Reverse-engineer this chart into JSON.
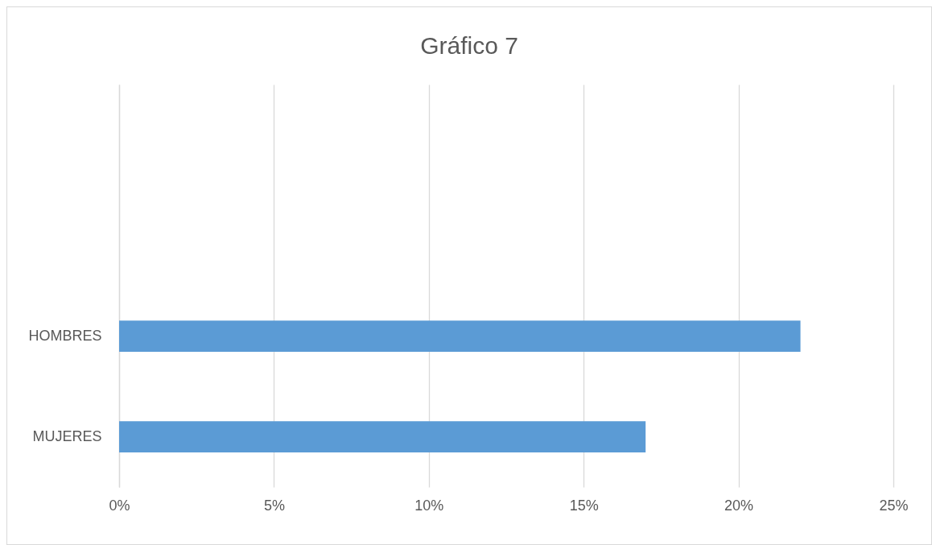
{
  "chart_data": {
    "type": "bar",
    "title": "Gráfico 7",
    "orientation": "horizontal",
    "categories": [
      null,
      null,
      "HOMBRES",
      "MUJERES"
    ],
    "values": [
      null,
      null,
      22,
      17
    ],
    "color": "#5b9bd5",
    "xlim": [
      0,
      25
    ],
    "xticks": [
      {
        "value": 0,
        "label": "0%"
      },
      {
        "value": 5,
        "label": "5%"
      },
      {
        "value": 10,
        "label": "10%"
      },
      {
        "value": 15,
        "label": "15%"
      },
      {
        "value": 20,
        "label": "20%"
      },
      {
        "value": 25,
        "label": "25%"
      }
    ],
    "grid": true
  }
}
